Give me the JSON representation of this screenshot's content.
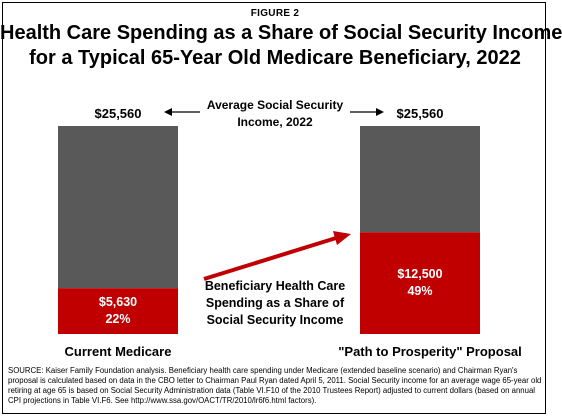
{
  "header": {
    "figure_label": "FIGURE 2",
    "title_line1": "Health Care Spending as a Share of Social Security Income",
    "title_line2": "for a Typical 65-Year Old Medicare Beneficiary, 2022"
  },
  "annotations": {
    "income_line1": "Average Social Security",
    "income_line2": "Income, 2022",
    "share_line1": "Beneficiary Health Care",
    "share_line2": "Spending as a Share of",
    "share_line3": "Social Security Income"
  },
  "footer": {
    "source": "SOURCE: Kaiser Family Foundation analysis. Beneficiary health care spending under Medicare (extended baseline scenario) and Chairman Ryan's proposal is calculated based on data in the CBO letter to Chairman Paul Ryan dated April 5, 2011. Social Security income for an average wage 65-year old retiring at age 65 is based on Social Security Administration data (Table VI.F10 of the 2010 Trustees Report) adjusted to current dollars (based on annual CPI projections in Table VI.F6. See http://www.ssa.gov/OACT/TR/2010/lr6f6.html factors)."
  },
  "colors": {
    "income_bar": "#595959",
    "spending_bar": "#c00000",
    "arrow": "#c00000"
  },
  "chart_data": {
    "type": "bar",
    "stacked": true,
    "title": "Health Care Spending as a Share of Social Security Income for a Typical 65-Year Old Medicare Beneficiary, 2022",
    "categories": [
      "Current Medicare",
      "\"Path to Prosperity\" Proposal"
    ],
    "totals": [
      25560,
      25560
    ],
    "total_labels": [
      "$25,560",
      "$25,560"
    ],
    "spending": [
      5630,
      12500
    ],
    "spending_labels": [
      "$5,630",
      "$12,500"
    ],
    "share_labels": [
      "22%",
      "49%"
    ],
    "ylim": [
      0,
      25560
    ]
  }
}
